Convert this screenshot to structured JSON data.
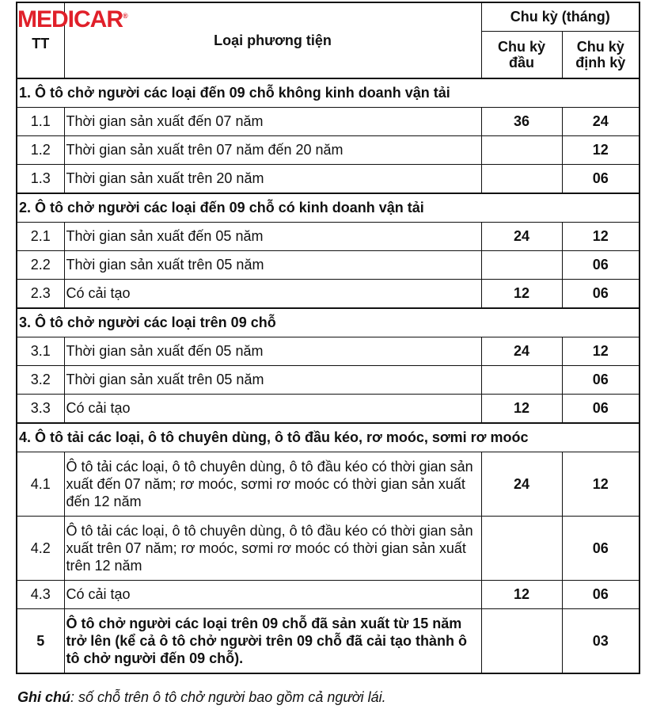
{
  "logo": "MEDICAR",
  "header": {
    "tt": "TT",
    "type": "Loại phương tiện",
    "cycle": "Chu kỳ (tháng)",
    "first": "Chu kỳ đầu",
    "periodic": "Chu kỳ định kỳ"
  },
  "rows": [
    {
      "kind": "sec",
      "label": "1. Ô tô chở người các loại đến 09 chỗ không kinh doanh vận tải"
    },
    {
      "tt": "1.1",
      "label": "Thời gian sản xuất đến 07 năm",
      "first": "36",
      "periodic": "24"
    },
    {
      "tt": "1.2",
      "label": "Thời gian sản xuất trên 07 năm đến 20 năm",
      "first": "",
      "periodic": "12"
    },
    {
      "tt": "1.3",
      "label": "Thời gian sản xuất trên 20 năm",
      "first": "",
      "periodic": "06"
    },
    {
      "kind": "sec",
      "label": "2. Ô tô chở người các loại đến 09 chỗ có kinh doanh vận tải"
    },
    {
      "tt": "2.1",
      "label": "Thời gian sản xuất đến 05 năm",
      "first": "24",
      "periodic": "12"
    },
    {
      "tt": "2.2",
      "label": "Thời gian sản xuất trên 05 năm",
      "first": "",
      "periodic": "06"
    },
    {
      "tt": "2.3",
      "label": "Có cải tạo",
      "first": "12",
      "periodic": "06"
    },
    {
      "kind": "sec",
      "label": "3. Ô tô chở người các loại trên 09 chỗ"
    },
    {
      "tt": "3.1",
      "label": "Thời gian sản xuất đến 05 năm",
      "first": "24",
      "periodic": "12"
    },
    {
      "tt": "3.2",
      "label": "Thời gian sản xuất trên 05 năm",
      "first": "",
      "periodic": "06"
    },
    {
      "tt": "3.3",
      "label": "Có cải tạo",
      "first": "12",
      "periodic": "06"
    },
    {
      "kind": "sec",
      "label": "4. Ô tô tải các loại, ô tô chuyên dùng, ô tô đầu kéo, rơ moóc, sơmi rơ moóc"
    },
    {
      "kind": "tall",
      "tt": "4.1",
      "label": "Ô tô tải các loại, ô tô chuyên dùng, ô tô đầu kéo có thời gian sản xuất đến 07 năm; rơ moóc, sơmi rơ moóc có thời gian sản xuất đến 12 năm",
      "first": "24",
      "periodic": "12"
    },
    {
      "kind": "tall",
      "tt": "4.2",
      "label": "Ô tô tải các loại, ô tô chuyên dùng, ô tô đầu kéo có thời gian sản xuất trên 07 năm; rơ moóc, sơmi rơ moóc có thời gian sản xuất trên 12 năm",
      "first": "",
      "periodic": "06"
    },
    {
      "tt": "4.3",
      "label": "Có cải tạo",
      "first": "12",
      "periodic": "06"
    },
    {
      "kind": "tallbold",
      "tt": "5",
      "label": "Ô tô chở người các loại trên 09 chỗ đã sản xuất từ 15 năm trở lên (kể cả ô tô chở người trên 09 chỗ đã cải tạo thành ô tô chở người đến 09 chỗ).",
      "first": "",
      "periodic": "03"
    }
  ],
  "note": {
    "label": "Ghi chú",
    "text": ": số chỗ trên ô tô chở người bao gồm cả người lái."
  }
}
